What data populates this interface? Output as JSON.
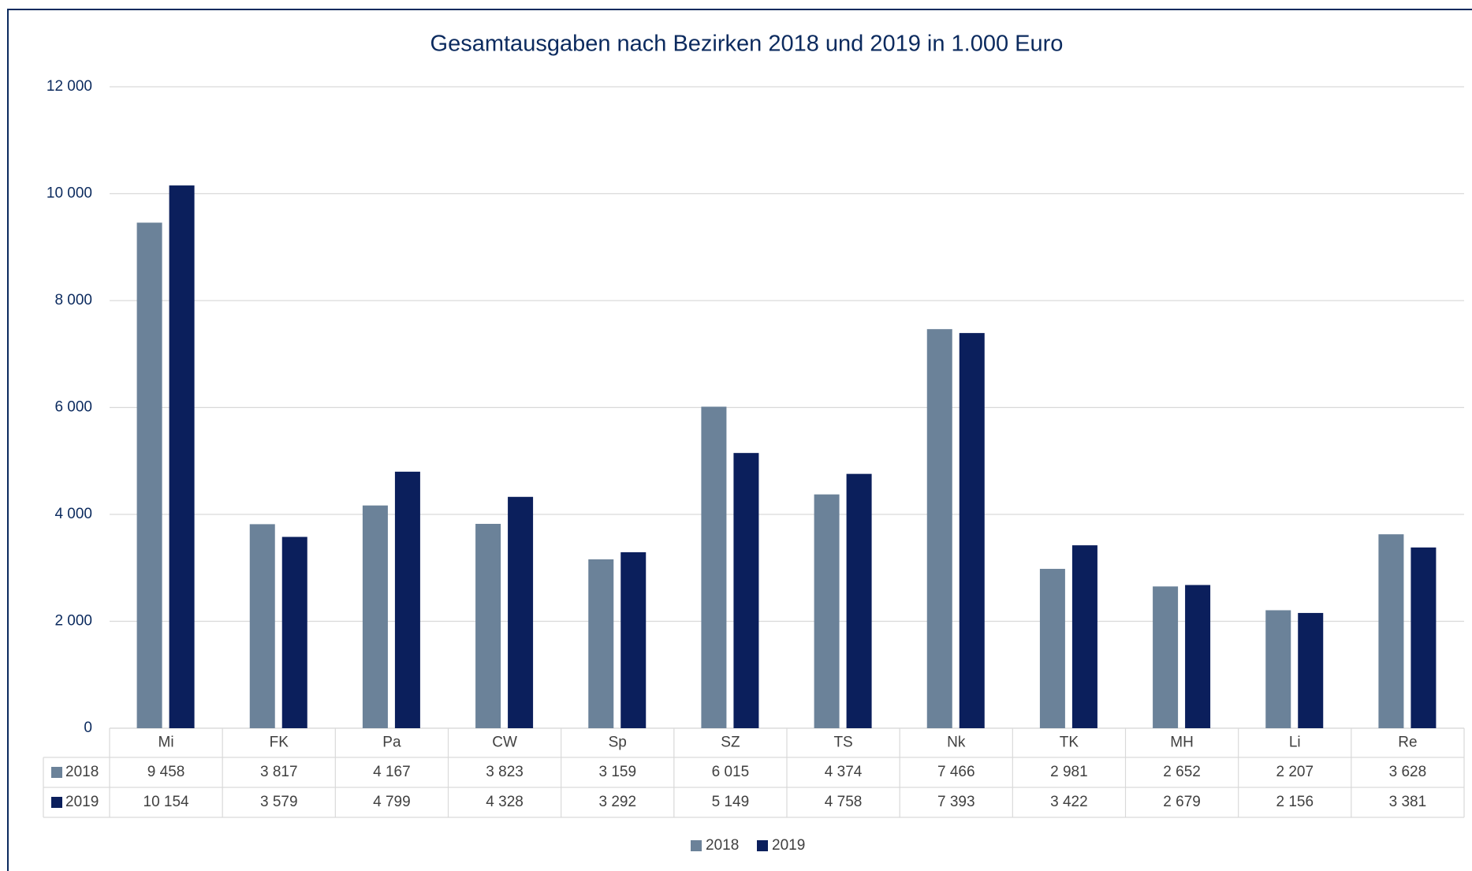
{
  "chart_data": {
    "type": "bar",
    "title": "Gesamtausgaben nach Bezirken 2018 und 2019 in 1.000 Euro",
    "categories": [
      "Mi",
      "FK",
      "Pa",
      "CW",
      "Sp",
      "SZ",
      "TS",
      "Nk",
      "TK",
      "MH",
      "Li",
      "Re"
    ],
    "series": [
      {
        "name": "2018",
        "color": "#6b8299",
        "values": [
          9458,
          3817,
          4167,
          3823,
          3159,
          6015,
          4374,
          7466,
          2981,
          2652,
          2207,
          3628
        ],
        "value_labels": [
          "9 458",
          "3 817",
          "4 167",
          "3 823",
          "3 159",
          "6 015",
          "4 374",
          "7 466",
          "2 981",
          "2 652",
          "2 207",
          "3 628"
        ]
      },
      {
        "name": "2019",
        "color": "#0b1f5c",
        "values": [
          10154,
          3579,
          4799,
          4328,
          3292,
          5149,
          4758,
          7393,
          3422,
          2679,
          2156,
          3381
        ],
        "value_labels": [
          "10 154",
          "3 579",
          "4 799",
          "4 328",
          "3 292",
          "5 149",
          "4 758",
          "7 393",
          "3 422",
          "2 679",
          "2 156",
          "3 381"
        ]
      }
    ],
    "ylim": [
      0,
      12000
    ],
    "yticks": [
      0,
      {
        "value": 2000,
        "label": "2 000"
      },
      {
        "value": 4000,
        "label": "4 000"
      },
      {
        "value": 6000,
        "label": "6 000"
      },
      {
        "value": 8000,
        "label": "8 000"
      },
      {
        "value": 10000,
        "label": "10 000"
      },
      {
        "value": 12000,
        "label": "12 000"
      }
    ],
    "grid": true,
    "legend": "bottom"
  }
}
